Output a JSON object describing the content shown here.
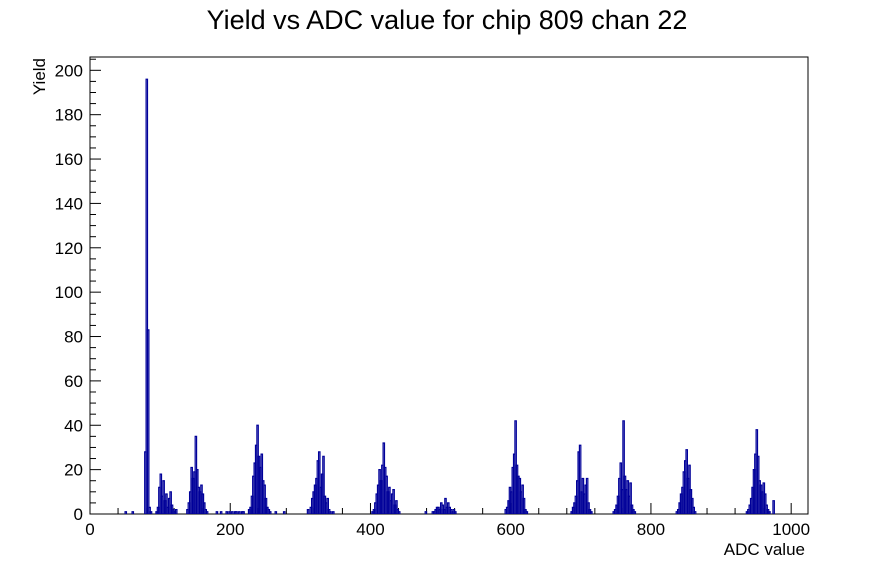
{
  "chart_data": {
    "type": "bar",
    "title": "Yield vs ADC value for chip 809 chan 22",
    "xlabel": "ADC value",
    "ylabel": "Yield",
    "xlim": [
      0,
      1024
    ],
    "ylim": [
      0,
      206
    ],
    "x_ticks": [
      0,
      200,
      400,
      600,
      800,
      1000
    ],
    "x_tick_labels": [
      "0",
      "200",
      "400",
      "600",
      "800",
      "1000"
    ],
    "y_ticks": [
      0,
      20,
      40,
      60,
      80,
      100,
      120,
      140,
      160,
      180,
      200
    ],
    "y_tick_labels": [
      "0",
      "20",
      "40",
      "60",
      "80",
      "100",
      "120",
      "140",
      "160",
      "180",
      "200"
    ],
    "bin_width": 2,
    "grid": false,
    "series": [
      {
        "color": "#000099",
        "bins": [
          [
            50,
            1
          ],
          [
            60,
            1
          ],
          [
            78,
            28
          ],
          [
            80,
            196
          ],
          [
            82,
            83
          ],
          [
            84,
            3
          ],
          [
            86,
            1
          ],
          [
            94,
            1
          ],
          [
            96,
            3
          ],
          [
            98,
            12
          ],
          [
            100,
            18
          ],
          [
            102,
            8
          ],
          [
            104,
            15
          ],
          [
            106,
            6
          ],
          [
            108,
            9
          ],
          [
            110,
            3
          ],
          [
            112,
            7
          ],
          [
            114,
            10
          ],
          [
            116,
            4
          ],
          [
            118,
            2
          ],
          [
            120,
            1
          ],
          [
            122,
            2
          ],
          [
            138,
            2
          ],
          [
            140,
            5
          ],
          [
            142,
            10
          ],
          [
            144,
            21
          ],
          [
            146,
            16
          ],
          [
            148,
            19
          ],
          [
            150,
            35
          ],
          [
            152,
            20
          ],
          [
            154,
            12
          ],
          [
            156,
            10
          ],
          [
            158,
            13
          ],
          [
            160,
            9
          ],
          [
            162,
            5
          ],
          [
            164,
            2
          ],
          [
            166,
            1
          ],
          [
            180,
            1
          ],
          [
            186,
            1
          ],
          [
            194,
            1
          ],
          [
            198,
            1
          ],
          [
            202,
            1
          ],
          [
            206,
            1
          ],
          [
            208,
            1
          ],
          [
            212,
            1
          ],
          [
            216,
            1
          ],
          [
            218,
            1
          ],
          [
            226,
            2
          ],
          [
            228,
            3
          ],
          [
            230,
            8
          ],
          [
            232,
            17
          ],
          [
            234,
            23
          ],
          [
            236,
            31
          ],
          [
            238,
            40
          ],
          [
            240,
            26
          ],
          [
            242,
            21
          ],
          [
            244,
            27
          ],
          [
            246,
            15
          ],
          [
            248,
            13
          ],
          [
            250,
            7
          ],
          [
            252,
            3
          ],
          [
            254,
            2
          ],
          [
            256,
            1
          ],
          [
            264,
            1
          ],
          [
            276,
            1
          ],
          [
            310,
            2
          ],
          [
            314,
            3
          ],
          [
            316,
            7
          ],
          [
            318,
            10
          ],
          [
            320,
            13
          ],
          [
            322,
            16
          ],
          [
            324,
            24
          ],
          [
            326,
            28
          ],
          [
            328,
            12
          ],
          [
            330,
            18
          ],
          [
            332,
            26
          ],
          [
            334,
            8
          ],
          [
            336,
            5
          ],
          [
            338,
            7
          ],
          [
            340,
            2
          ],
          [
            342,
            1
          ],
          [
            346,
            1
          ],
          [
            402,
            1
          ],
          [
            404,
            2
          ],
          [
            406,
            5
          ],
          [
            408,
            9
          ],
          [
            410,
            13
          ],
          [
            412,
            20
          ],
          [
            414,
            15
          ],
          [
            416,
            22
          ],
          [
            418,
            32
          ],
          [
            420,
            21
          ],
          [
            422,
            17
          ],
          [
            424,
            10
          ],
          [
            426,
            12
          ],
          [
            428,
            6
          ],
          [
            430,
            9
          ],
          [
            432,
            11
          ],
          [
            434,
            4
          ],
          [
            436,
            6
          ],
          [
            438,
            2
          ],
          [
            440,
            1
          ],
          [
            478,
            1
          ],
          [
            488,
            1
          ],
          [
            490,
            1
          ],
          [
            492,
            2
          ],
          [
            494,
            3
          ],
          [
            496,
            3
          ],
          [
            498,
            2
          ],
          [
            500,
            5
          ],
          [
            502,
            4
          ],
          [
            504,
            2
          ],
          [
            506,
            7
          ],
          [
            508,
            3
          ],
          [
            510,
            5
          ],
          [
            512,
            3
          ],
          [
            514,
            2
          ],
          [
            516,
            1
          ],
          [
            518,
            2
          ],
          [
            520,
            1
          ],
          [
            592,
            2
          ],
          [
            594,
            3
          ],
          [
            596,
            6
          ],
          [
            598,
            12
          ],
          [
            600,
            10
          ],
          [
            602,
            21
          ],
          [
            604,
            27
          ],
          [
            606,
            42
          ],
          [
            608,
            22
          ],
          [
            610,
            17
          ],
          [
            612,
            16
          ],
          [
            614,
            10
          ],
          [
            616,
            13
          ],
          [
            618,
            7
          ],
          [
            620,
            2
          ],
          [
            622,
            1
          ],
          [
            686,
            1
          ],
          [
            688,
            3
          ],
          [
            690,
            5
          ],
          [
            692,
            8
          ],
          [
            694,
            15
          ],
          [
            696,
            28
          ],
          [
            698,
            31
          ],
          [
            700,
            10
          ],
          [
            702,
            16
          ],
          [
            704,
            9
          ],
          [
            706,
            13
          ],
          [
            708,
            16
          ],
          [
            710,
            5
          ],
          [
            712,
            2
          ],
          [
            714,
            1
          ],
          [
            746,
            1
          ],
          [
            748,
            2
          ],
          [
            750,
            4
          ],
          [
            752,
            8
          ],
          [
            754,
            16
          ],
          [
            756,
            23
          ],
          [
            758,
            11
          ],
          [
            760,
            42
          ],
          [
            762,
            17
          ],
          [
            764,
            11
          ],
          [
            766,
            15
          ],
          [
            768,
            8
          ],
          [
            770,
            14
          ],
          [
            772,
            4
          ],
          [
            774,
            2
          ],
          [
            776,
            1
          ],
          [
            836,
            1
          ],
          [
            838,
            2
          ],
          [
            840,
            5
          ],
          [
            842,
            9
          ],
          [
            844,
            12
          ],
          [
            846,
            19
          ],
          [
            848,
            24
          ],
          [
            850,
            29
          ],
          [
            852,
            16
          ],
          [
            854,
            22
          ],
          [
            856,
            11
          ],
          [
            858,
            7
          ],
          [
            860,
            3
          ],
          [
            862,
            1
          ],
          [
            936,
            1
          ],
          [
            938,
            2
          ],
          [
            940,
            4
          ],
          [
            942,
            7
          ],
          [
            944,
            12
          ],
          [
            946,
            20
          ],
          [
            948,
            27
          ],
          [
            950,
            38
          ],
          [
            952,
            26
          ],
          [
            954,
            15
          ],
          [
            956,
            13
          ],
          [
            958,
            10
          ],
          [
            960,
            14
          ],
          [
            962,
            9
          ],
          [
            964,
            4
          ],
          [
            966,
            2
          ],
          [
            968,
            1
          ],
          [
            974,
            6
          ]
        ]
      }
    ]
  }
}
